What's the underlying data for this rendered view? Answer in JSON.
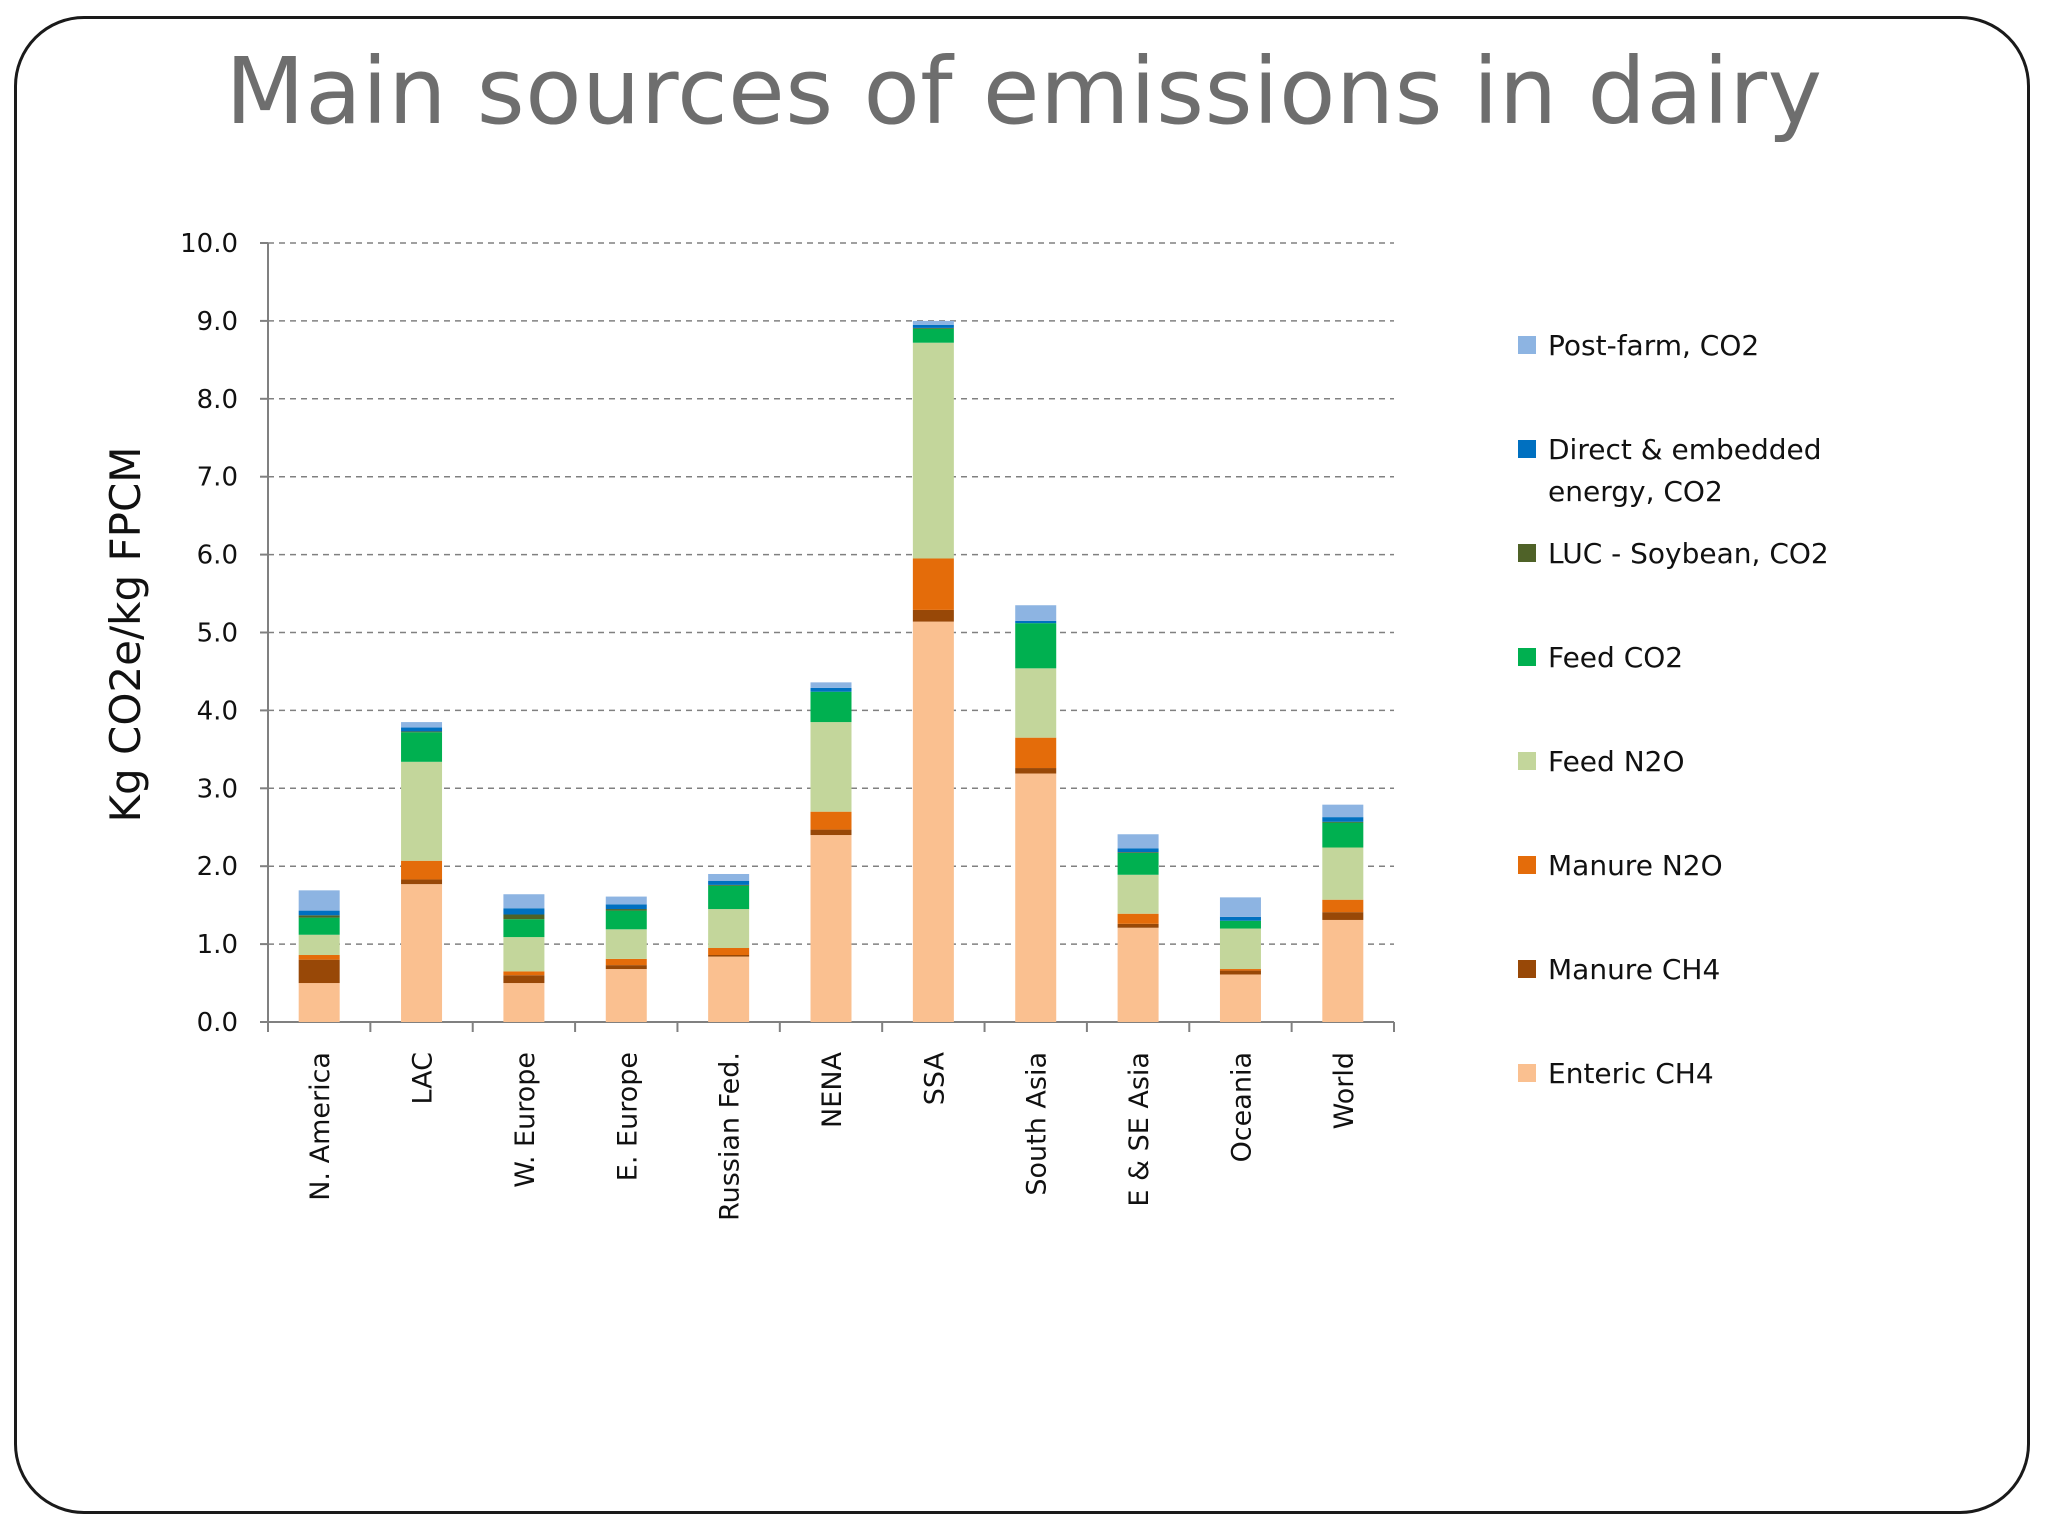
{
  "title": "Main sources of emissions in dairy",
  "chart_data": {
    "type": "bar",
    "stacked": true,
    "categories": [
      "N. America",
      "LAC",
      "W. Europe",
      "E. Europe",
      "Russian Fed.",
      "NENA",
      "SSA",
      "South Asia",
      "E & SE Asia",
      "Oceania",
      "World"
    ],
    "ylabel": "Kg CO2e/kg FPCM",
    "xlabel": "",
    "ylim": [
      0,
      10
    ],
    "yticks": [
      "0.0",
      "1.0",
      "2.0",
      "3.0",
      "4.0",
      "5.0",
      "6.0",
      "7.0",
      "8.0",
      "9.0",
      "10.0"
    ],
    "grid": true,
    "legend_position": "right",
    "series": [
      {
        "name": "Enteric CH4",
        "color": "#FAC090",
        "values": [
          0.5,
          1.77,
          0.5,
          0.68,
          0.84,
          2.4,
          5.14,
          3.19,
          1.21,
          0.61,
          1.31
        ]
      },
      {
        "name": "Manure CH4",
        "color": "#984807",
        "values": [
          0.3,
          0.06,
          0.1,
          0.05,
          0.02,
          0.07,
          0.15,
          0.07,
          0.05,
          0.05,
          0.1
        ]
      },
      {
        "name": "Manure N2O",
        "color": "#E46C0A",
        "values": [
          0.06,
          0.24,
          0.05,
          0.08,
          0.09,
          0.23,
          0.66,
          0.39,
          0.13,
          0.02,
          0.16
        ]
      },
      {
        "name": "Feed N2O",
        "color": "#C3D69B",
        "values": [
          0.26,
          1.27,
          0.44,
          0.38,
          0.5,
          1.15,
          2.77,
          0.89,
          0.5,
          0.52,
          0.67
        ]
      },
      {
        "name": "Feed CO2",
        "color": "#00B050",
        "values": [
          0.22,
          0.38,
          0.23,
          0.24,
          0.3,
          0.39,
          0.18,
          0.58,
          0.28,
          0.1,
          0.32
        ]
      },
      {
        "name": "LUC - Soybean, CO2",
        "color": "#4F6228",
        "values": [
          0.03,
          0.01,
          0.06,
          0.02,
          0.01,
          0.0,
          0.01,
          0.0,
          0.01,
          0.0,
          0.01
        ]
      },
      {
        "name": "Direct & embedded energy, CO2",
        "color": "#0070C0",
        "values": [
          0.06,
          0.05,
          0.08,
          0.06,
          0.05,
          0.05,
          0.04,
          0.03,
          0.05,
          0.05,
          0.06
        ]
      },
      {
        "name": "Post-farm, CO2",
        "color": "#8DB4E2",
        "values": [
          0.26,
          0.07,
          0.18,
          0.1,
          0.09,
          0.07,
          0.05,
          0.2,
          0.18,
          0.25,
          0.16
        ]
      }
    ]
  }
}
